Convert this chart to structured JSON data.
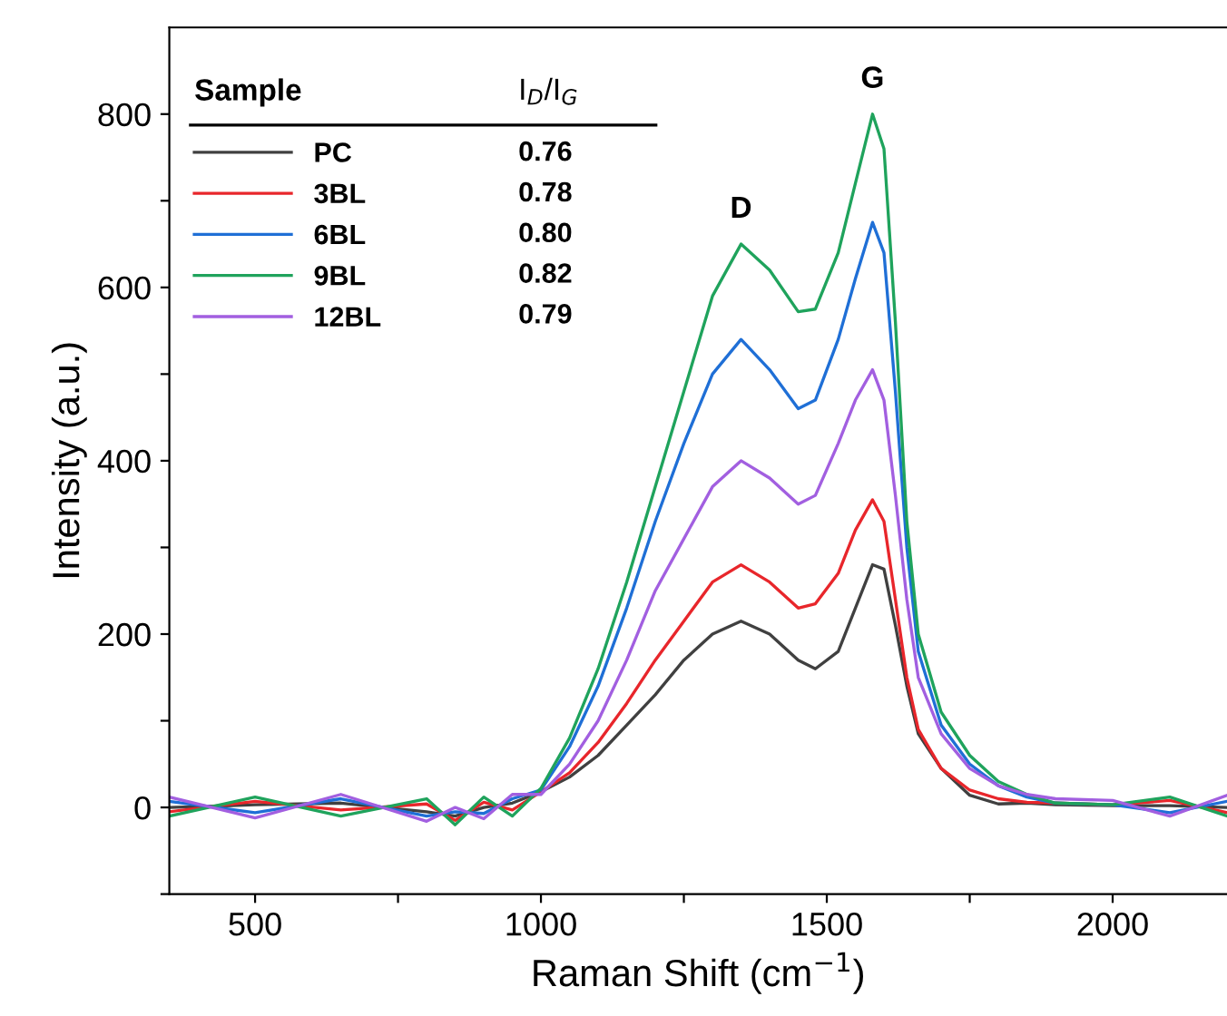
{
  "chart_data": {
    "type": "line",
    "xlabel": "Raman Shift (cm$^{−1}$)",
    "ylabel": "Intensity (a.u.)",
    "legend_title": "Sample",
    "xlim": [
      350,
      2200
    ],
    "xticks": [
      500,
      {
        "value": 750,
        "label": null
      },
      1000,
      {
        "value": 1250,
        "label": null
      },
      1500,
      {
        "value": 1750,
        "label": null
      },
      2000
    ],
    "ylim": [
      -100,
      900
    ],
    "yticks": [
      {
        "value": -100,
        "label": null
      },
      0,
      {
        "value": 100,
        "label": null
      },
      200,
      {
        "value": 300,
        "label": null
      },
      400,
      {
        "value": 500,
        "label": null
      },
      600,
      {
        "value": 700,
        "label": null
      },
      800
    ],
    "grid": false,
    "legend": "top left",
    "marker": "none",
    "line_style": "solid",
    "x": [
      350,
      500,
      650,
      800,
      850,
      900,
      950,
      1000,
      1050,
      1100,
      1150,
      1200,
      1250,
      1300,
      1350,
      1400,
      1450,
      1480,
      1520,
      1550,
      1580,
      1600,
      1620,
      1640,
      1660,
      1700,
      1750,
      1800,
      1850,
      1900,
      2000,
      2100,
      2200
    ],
    "series": [
      {
        "name": "PC",
        "color": "#404040",
        "values": [
          0,
          3,
          5,
          -5,
          -10,
          0,
          5,
          18,
          35,
          60,
          95,
          130,
          170,
          200,
          215,
          200,
          170,
          160,
          180,
          230,
          280,
          275,
          210,
          140,
          85,
          45,
          14,
          4,
          5,
          3,
          2,
          2,
          0
        ]
      },
      {
        "name": "3BL",
        "color": "#e8262b",
        "values": [
          -5,
          7,
          -3,
          4,
          -15,
          6,
          -3,
          18,
          40,
          75,
          120,
          170,
          215,
          260,
          280,
          260,
          230,
          235,
          270,
          320,
          355,
          330,
          240,
          150,
          90,
          45,
          20,
          10,
          6,
          5,
          3,
          8,
          -6
        ]
      },
      {
        "name": "6BL",
        "color": "#1f6fd6",
        "values": [
          7,
          -6,
          10,
          -10,
          -5,
          -7,
          10,
          20,
          70,
          140,
          230,
          330,
          420,
          500,
          540,
          505,
          460,
          470,
          540,
          610,
          675,
          640,
          480,
          300,
          180,
          95,
          50,
          25,
          12,
          5,
          3,
          -6,
          7
        ]
      },
      {
        "name": "9BL",
        "color": "#1fa35c",
        "values": [
          -10,
          12,
          -10,
          10,
          -20,
          12,
          -10,
          22,
          80,
          160,
          260,
          370,
          480,
          590,
          650,
          620,
          572,
          575,
          640,
          720,
          800,
          760,
          560,
          330,
          200,
          110,
          60,
          30,
          15,
          5,
          3,
          12,
          -10
        ]
      },
      {
        "name": "12BL",
        "color": "#a25fe0",
        "values": [
          12,
          -12,
          15,
          -16,
          0,
          -13,
          15,
          15,
          50,
          100,
          170,
          250,
          310,
          370,
          400,
          380,
          350,
          360,
          420,
          470,
          505,
          470,
          360,
          240,
          150,
          85,
          45,
          25,
          15,
          10,
          8,
          -10,
          14
        ]
      }
    ],
    "annotations": [
      "I$_{D}$/I$_{G}$",
      "0.76",
      "0.78",
      "0.80",
      "0.82",
      "0.79",
      {
        "text": "D",
        "x": 1350,
        "y": 650
      },
      {
        "text": "G",
        "x": 1580,
        "y": 800
      }
    ]
  }
}
